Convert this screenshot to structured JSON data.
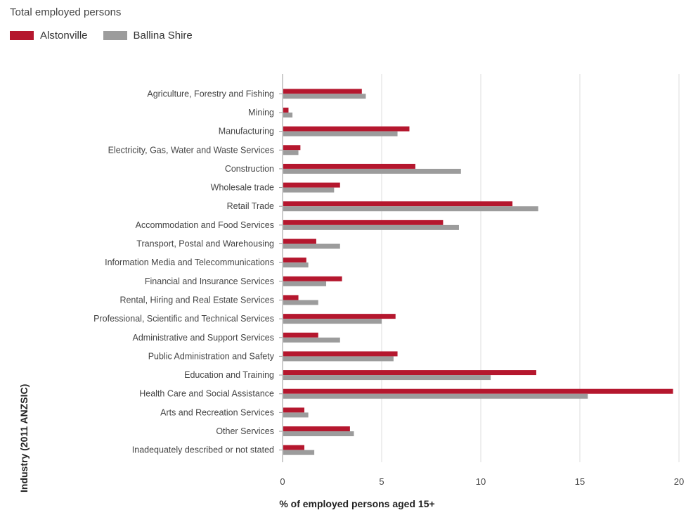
{
  "chart_data": {
    "type": "bar",
    "orientation": "horizontal",
    "title": "Total employed persons",
    "xlabel": "% of employed persons aged 15+",
    "ylabel": "Industry (2011 ANZSIC)",
    "xlim": [
      0,
      20
    ],
    "xticks": [
      "0",
      "5",
      "10",
      "15",
      "20"
    ],
    "grid": true,
    "legend_position": "top-left",
    "categories": [
      "Agriculture, Forestry and Fishing",
      "Mining",
      "Manufacturing",
      "Electricity, Gas, Water and Waste Services",
      "Construction",
      "Wholesale trade",
      "Retail Trade",
      "Accommodation and Food Services",
      "Transport, Postal and Warehousing",
      "Information Media and Telecommunications",
      "Financial and Insurance Services",
      "Rental, Hiring and Real Estate Services",
      "Professional, Scientific and Technical Services",
      "Administrative and Support Services",
      "Public Administration and Safety",
      "Education and Training",
      "Health Care and Social Assistance",
      "Arts and Recreation Services",
      "Other Services",
      "Inadequately described or not stated"
    ],
    "series": [
      {
        "name": "Alstonville",
        "color": "#b5172e",
        "values": [
          4.0,
          0.3,
          6.4,
          0.9,
          6.7,
          2.9,
          11.6,
          8.1,
          1.7,
          1.2,
          3.0,
          0.8,
          5.7,
          1.8,
          5.8,
          12.8,
          19.7,
          1.1,
          3.4,
          1.1
        ]
      },
      {
        "name": "Ballina Shire",
        "color": "#9c9c9c",
        "values": [
          4.2,
          0.5,
          5.8,
          0.8,
          9.0,
          2.6,
          12.9,
          8.9,
          2.9,
          1.3,
          2.2,
          1.8,
          5.0,
          2.9,
          5.6,
          10.5,
          15.4,
          1.3,
          3.6,
          1.6
        ]
      }
    ]
  }
}
